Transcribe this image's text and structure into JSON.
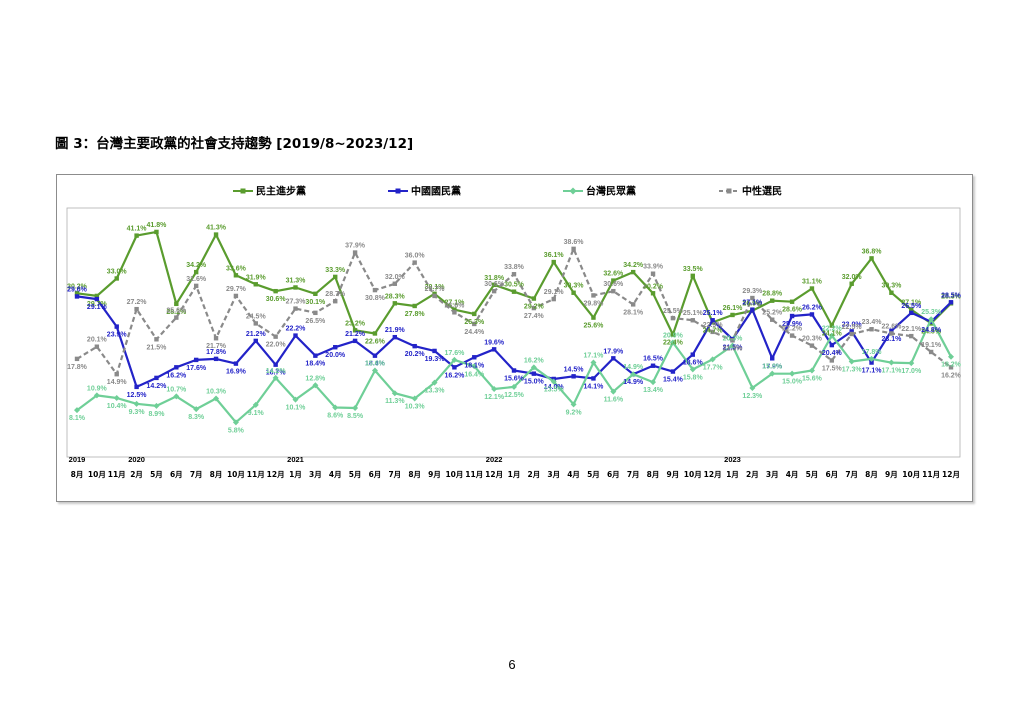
{
  "title": "圖 3：台灣主要政黨的社會支持趨勢  [2019/8~2023/12]",
  "page_number": "6",
  "colors": {
    "dpp": "#5a9c2e",
    "kmt": "#2323c8",
    "tpp": "#6fcf97",
    "neutral": "#8a8a8a"
  },
  "chart_data": {
    "type": "line",
    "x": [
      "8月",
      "10月",
      "11月",
      "2月",
      "5月",
      "6月",
      "7月",
      "8月",
      "10月",
      "11月",
      "12月",
      "1月",
      "3月",
      "4月",
      "5月",
      "6月",
      "7月",
      "8月",
      "9月",
      "10月",
      "11月",
      "12月",
      "1月",
      "2月",
      "3月",
      "4月",
      "5月",
      "6月",
      "7月",
      "8月",
      "9月",
      "10月",
      "12月",
      "1月",
      "2月",
      "3月",
      "4月",
      "5月",
      "6月",
      "7月",
      "8月",
      "9月",
      "10月",
      "11月",
      "12月"
    ],
    "year_labels": [
      {
        "label": "2019",
        "index": 0
      },
      {
        "label": "2020",
        "index": 3
      },
      {
        "label": "2021",
        "index": 11
      },
      {
        "label": "2022",
        "index": 21
      },
      {
        "label": "2023",
        "index": 33
      }
    ],
    "ylim": [
      0,
      45
    ],
    "grid": false,
    "legend_position": "top",
    "series": [
      {
        "name": "民主進步黨",
        "color_key": "dpp",
        "marker": "square",
        "values": [
          30.2,
          29.7,
          33.0,
          41.1,
          41.8,
          28.2,
          34.2,
          41.3,
          33.6,
          31.9,
          30.6,
          31.3,
          30.1,
          33.3,
          23.2,
          22.6,
          28.3,
          27.8,
          30.1,
          27.1,
          26.3,
          31.8,
          30.5,
          29.2,
          36.1,
          30.3,
          25.6,
          32.6,
          34.2,
          30.2,
          22.4,
          33.5,
          24.7,
          26.1,
          26.9,
          28.8,
          28.6,
          31.1,
          24.1,
          32.0,
          36.8,
          30.3,
          27.1,
          24.5,
          28.3
        ]
      },
      {
        "name": "中國國民黨",
        "color_key": "kmt",
        "marker": "square",
        "values": [
          29.6,
          29.1,
          23.9,
          12.5,
          14.2,
          16.2,
          17.6,
          17.8,
          16.9,
          21.2,
          16.7,
          22.2,
          18.4,
          20.0,
          21.2,
          18.4,
          21.9,
          20.2,
          19.3,
          16.2,
          18.1,
          19.6,
          15.6,
          15.0,
          14.0,
          14.5,
          14.1,
          17.9,
          14.9,
          16.5,
          15.4,
          18.6,
          25.1,
          21.5,
          27.1,
          17.9,
          25.9,
          26.2,
          20.4,
          23.0,
          17.1,
          23.1,
          26.5,
          24.8,
          28.5
        ]
      },
      {
        "name": "台灣民眾黨",
        "color_key": "tpp",
        "marker": "diamond",
        "values": [
          8.1,
          10.9,
          10.4,
          9.3,
          8.9,
          10.7,
          8.3,
          10.3,
          5.8,
          9.1,
          14.2,
          10.1,
          12.8,
          8.6,
          8.5,
          15.6,
          11.3,
          10.3,
          13.3,
          17.6,
          16.4,
          12.1,
          12.5,
          16.2,
          13.5,
          9.2,
          17.1,
          11.6,
          14.9,
          13.4,
          20.9,
          15.8,
          17.7,
          20.3,
          12.3,
          15.0,
          15.0,
          15.6,
          22.2,
          17.3,
          17.8,
          17.1,
          17.0,
          25.3,
          18.2
        ]
      },
      {
        "name": "中性選民",
        "color_key": "neutral",
        "marker": "square",
        "dashed": true,
        "values": [
          17.8,
          20.1,
          14.9,
          27.2,
          21.5,
          25.6,
          31.6,
          21.7,
          29.7,
          24.5,
          22.0,
          27.3,
          26.5,
          28.7,
          37.9,
          30.8,
          32.0,
          36.0,
          29.7,
          26.6,
          24.4,
          30.6,
          33.8,
          27.4,
          29.1,
          38.6,
          29.8,
          30.6,
          28.1,
          33.9,
          25.5,
          25.1,
          22.9,
          21.3,
          29.3,
          25.2,
          22.2,
          20.3,
          17.5,
          22.5,
          23.4,
          22.6,
          22.1,
          19.1,
          16.2
        ]
      }
    ]
  }
}
